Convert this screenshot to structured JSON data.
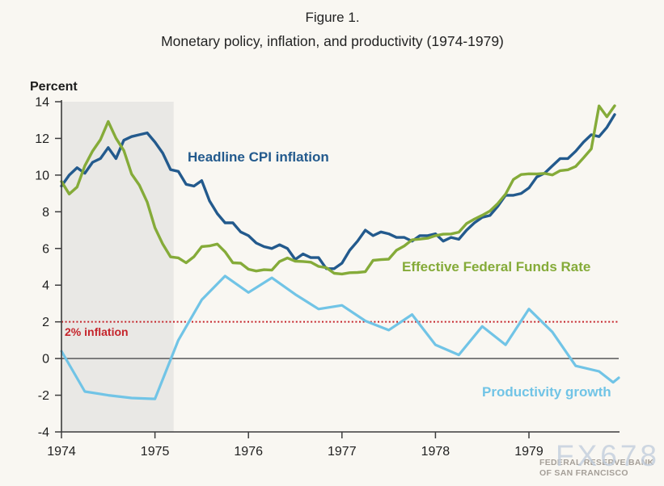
{
  "figure": {
    "label": "Figure 1.",
    "title": "Monetary policy, inflation, and productivity (1974-1979)"
  },
  "axis": {
    "unit_label": "Percent",
    "y_ticks": [
      14,
      12,
      10,
      8,
      6,
      4,
      2,
      0,
      -2,
      -4
    ],
    "x_ticks": [
      1974,
      1975,
      1976,
      1977,
      1978,
      1979
    ]
  },
  "watermark": {
    "logo": "FX678",
    "org_line1": "FEDERAL RESERVE BANK",
    "org_line2": "OF SAN FRANCISCO"
  },
  "colors": {
    "background": "#f9f7f2",
    "cpi_blue": "#235a8d",
    "effr_green": "#85ab39",
    "productivity_blue": "#71c4e6",
    "target_red": "#c5242b",
    "recession_band": "#e9e8e5",
    "zero_line": "#6e6e6e",
    "axis": "#3c3c3c",
    "watermark_logo": "#c2cddc",
    "watermark_text": "#a59f98"
  },
  "chart_data": {
    "type": "line",
    "title": "Monetary policy, inflation, and productivity (1974-1979)",
    "xlabel": "",
    "ylabel": "Percent",
    "xlim": [
      1974,
      1979.96
    ],
    "ylim": [
      -4,
      14
    ],
    "grid": false,
    "legend_position": "inline-labels",
    "recession_shading": {
      "from": 1974.0,
      "to": 1975.2
    },
    "reference_lines": [
      {
        "y": 0,
        "style": "solid",
        "color": "#6e6e6e",
        "width": 1.8,
        "label": ""
      },
      {
        "y": 2,
        "style": "dotted",
        "color": "#c5242b",
        "width": 2.0,
        "label": "2% inflation"
      }
    ],
    "series": [
      {
        "name": "Headline CPI inflation",
        "color": "#235a8d",
        "width": 3.4,
        "x_start": 1974.0,
        "x_step": 0.083333,
        "values": [
          9.4,
          10.0,
          10.4,
          10.1,
          10.7,
          10.9,
          11.5,
          10.9,
          11.9,
          12.1,
          12.2,
          12.3,
          11.8,
          11.2,
          10.3,
          10.2,
          9.5,
          9.4,
          9.7,
          8.6,
          7.9,
          7.4,
          7.4,
          6.9,
          6.7,
          6.3,
          6.1,
          6.0,
          6.2,
          6.0,
          5.4,
          5.7,
          5.5,
          5.5,
          4.9,
          4.9,
          5.2,
          5.9,
          6.4,
          7.0,
          6.7,
          6.9,
          6.8,
          6.6,
          6.6,
          6.4,
          6.7,
          6.7,
          6.8,
          6.4,
          6.6,
          6.5,
          7.0,
          7.4,
          7.7,
          7.8,
          8.3,
          8.9,
          8.9,
          9.0,
          9.3,
          9.9,
          10.1,
          10.5,
          10.9,
          10.9,
          11.3,
          11.8,
          12.2,
          12.1,
          12.6,
          13.3
        ]
      },
      {
        "name": "Effective Federal Funds Rate",
        "color": "#85ab39",
        "width": 3.4,
        "x_start": 1974.0,
        "x_step": 0.083333,
        "values": [
          9.65,
          8.97,
          9.35,
          10.51,
          11.31,
          11.93,
          12.92,
          12.01,
          11.34,
          10.06,
          9.45,
          8.53,
          7.13,
          6.24,
          5.54,
          5.49,
          5.22,
          5.55,
          6.1,
          6.14,
          6.24,
          5.82,
          5.22,
          5.2,
          4.87,
          4.77,
          4.84,
          4.82,
          5.29,
          5.48,
          5.31,
          5.29,
          5.25,
          5.02,
          4.95,
          4.65,
          4.61,
          4.68,
          4.69,
          4.73,
          5.35,
          5.39,
          5.42,
          5.9,
          6.14,
          6.47,
          6.51,
          6.56,
          6.7,
          6.78,
          6.79,
          6.89,
          7.36,
          7.6,
          7.81,
          8.04,
          8.45,
          8.96,
          9.76,
          10.03,
          10.07,
          10.06,
          10.09,
          10.01,
          10.24,
          10.29,
          10.47,
          10.94,
          11.43,
          13.77,
          13.18,
          13.78
        ]
      },
      {
        "name": "Productivity growth",
        "color": "#71c4e6",
        "width": 3.2,
        "points": [
          [
            1974.0,
            0.4
          ],
          [
            1974.25,
            -1.8
          ],
          [
            1974.5,
            -2.0
          ],
          [
            1974.75,
            -2.15
          ],
          [
            1975.0,
            -2.2
          ],
          [
            1975.25,
            1.0
          ],
          [
            1975.5,
            3.2
          ],
          [
            1975.75,
            4.5
          ],
          [
            1976.0,
            3.6
          ],
          [
            1976.25,
            4.4
          ],
          [
            1976.5,
            3.5
          ],
          [
            1976.75,
            2.7
          ],
          [
            1977.0,
            2.9
          ],
          [
            1977.25,
            2.05
          ],
          [
            1977.5,
            1.55
          ],
          [
            1977.75,
            2.4
          ],
          [
            1978.0,
            0.75
          ],
          [
            1978.25,
            0.2
          ],
          [
            1978.5,
            1.75
          ],
          [
            1978.75,
            0.75
          ],
          [
            1979.0,
            2.7
          ],
          [
            1979.25,
            1.45
          ],
          [
            1979.5,
            -0.4
          ],
          [
            1979.75,
            -0.7
          ],
          [
            1979.9,
            -1.3
          ],
          [
            1979.96,
            -1.05
          ]
        ]
      }
    ]
  }
}
